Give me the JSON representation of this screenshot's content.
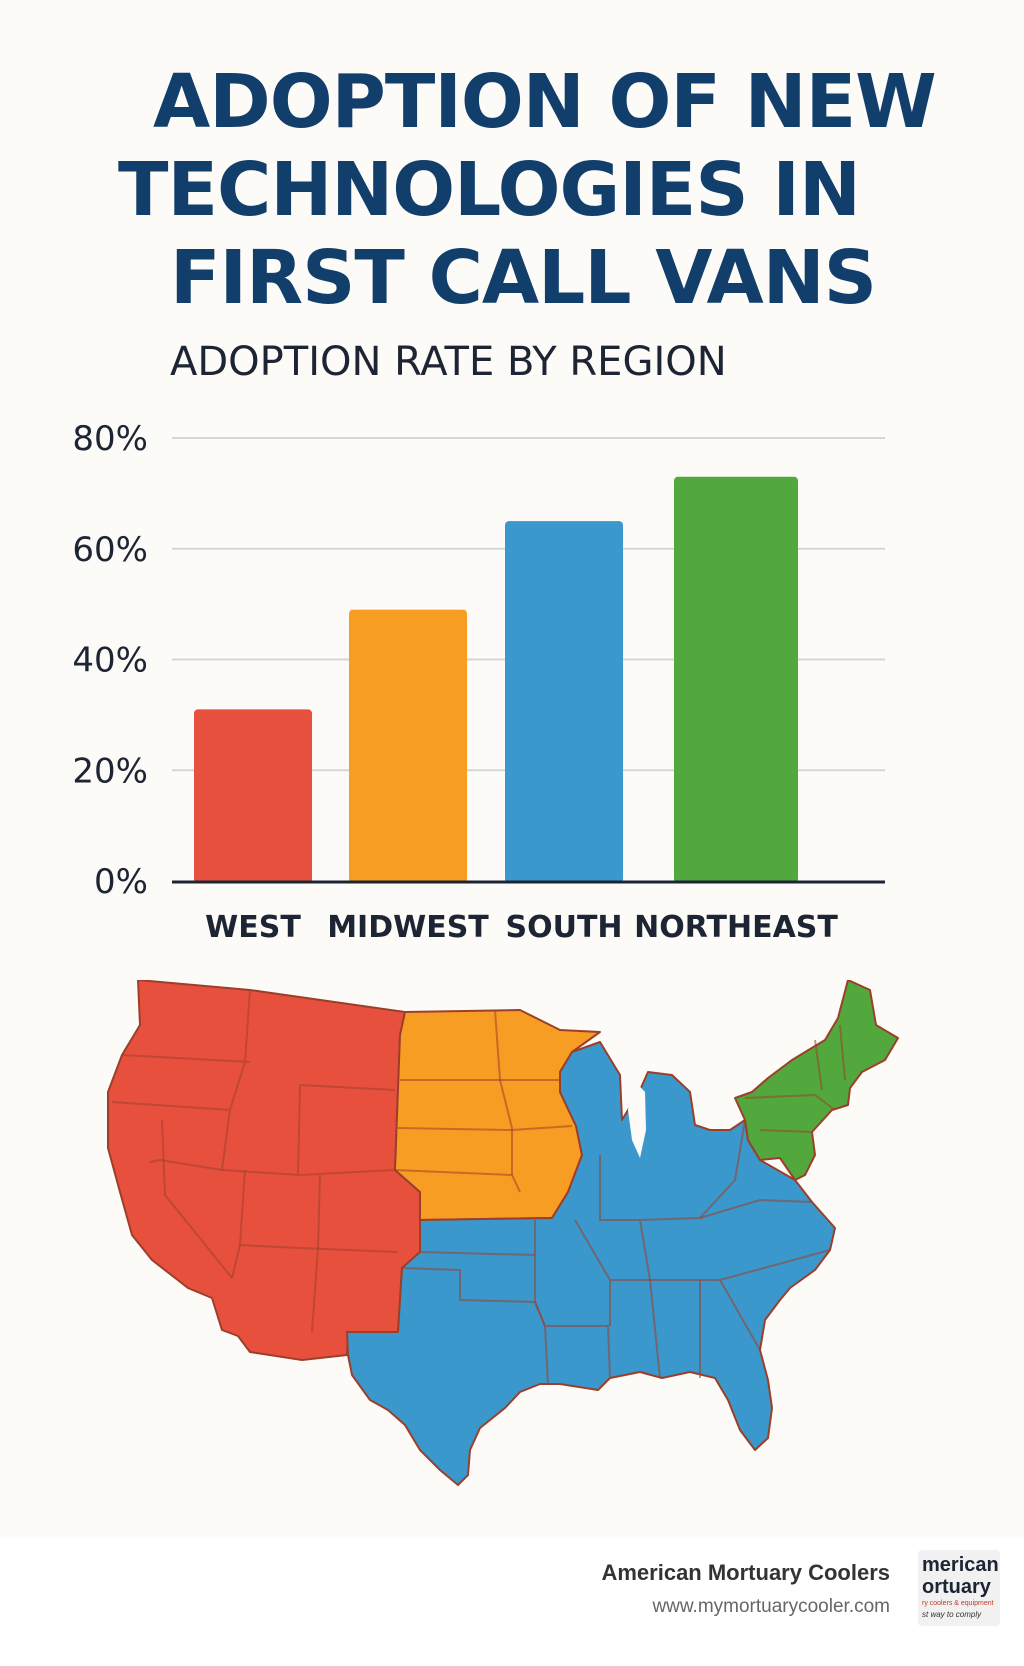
{
  "title_lines": [
    "ADOPTION OF NEW",
    "TECHNOLOGIES IN",
    "FIRST CALL VANS"
  ],
  "chart_data": {
    "type": "bar",
    "title": "ADOPTION RATE BY REGION",
    "categories": [
      "WEST",
      "MIDWEST",
      "SOUTH",
      "NORTHEAST"
    ],
    "values": [
      31,
      49,
      65,
      73
    ],
    "bar_colors": [
      "#e8503e",
      "#f89d24",
      "#3a98cc",
      "#52a83d"
    ],
    "ylim": [
      0,
      80
    ],
    "yticks": [
      0,
      20,
      40,
      60,
      80
    ],
    "ytick_labels": [
      "0%",
      "20%",
      "40%",
      "60%",
      "80%"
    ],
    "y_unit": "%",
    "grid": true,
    "xlabel": "",
    "ylabel": ""
  },
  "map": {
    "regions": [
      {
        "name": "West",
        "color": "#e8503e"
      },
      {
        "name": "Midwest",
        "color": "#f89d24"
      },
      {
        "name": "South",
        "color": "#3a98cc"
      },
      {
        "name": "Northeast",
        "color": "#52a83d"
      }
    ],
    "border_color": "#9c3f2a"
  },
  "footer": {
    "brand": "American Mortuary Coolers",
    "url": "www.mymortuarycooler.com",
    "logo_lines": [
      "merican",
      "ortuary",
      "ry coolers & equipment",
      "st way to comply"
    ]
  }
}
